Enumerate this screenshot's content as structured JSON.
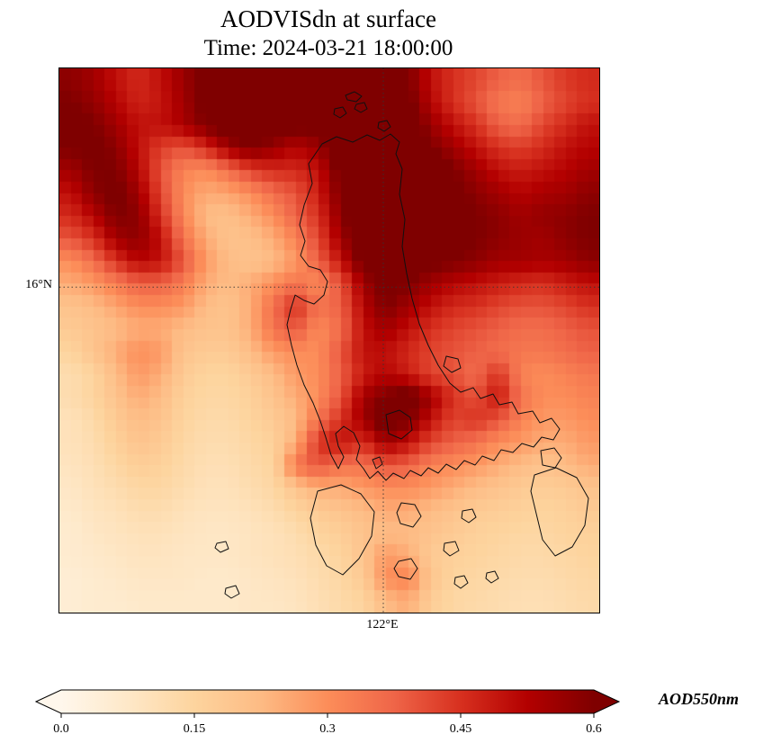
{
  "title": "AODVISdn at surface",
  "subtitle": "Time: 2024-03-21 18:00:00",
  "colorbar": {
    "label": "AOD550nm",
    "ticks": [
      "0.0",
      "0.15",
      "0.3",
      "0.45",
      "0.6"
    ],
    "tick_values": [
      0.0,
      0.15,
      0.3,
      0.45,
      0.6
    ],
    "vmin": 0.0,
    "vmax": 0.6,
    "extend": "both",
    "colors": [
      {
        "t": 0.0,
        "c": "#fff7ec"
      },
      {
        "t": 0.125,
        "c": "#fee8c8"
      },
      {
        "t": 0.25,
        "c": "#fdd49e"
      },
      {
        "t": 0.375,
        "c": "#fdbb84"
      },
      {
        "t": 0.5,
        "c": "#fc8d59"
      },
      {
        "t": 0.625,
        "c": "#ef6548"
      },
      {
        "t": 0.75,
        "c": "#d7301f"
      },
      {
        "t": 0.875,
        "c": "#b30000"
      },
      {
        "t": 1.0,
        "c": "#7f0000"
      }
    ]
  },
  "chart_data": {
    "type": "heatmap",
    "title": "AODVISdn at surface",
    "subtitle": "Time: 2024-03-21 18:00:00",
    "variable": "AOD550nm",
    "colormap": "OrRd",
    "vmin": 0.0,
    "vmax": 0.6,
    "gridlines": {
      "lat": {
        "label": "16°N",
        "y_frac": 0.402
      },
      "lon": {
        "label": "122°E",
        "x_frac": 0.6
      }
    },
    "grid_rows": 24,
    "grid_cols": 24,
    "values": [
      [
        0.58,
        0.55,
        0.5,
        0.46,
        0.5,
        0.56,
        0.62,
        0.66,
        0.68,
        0.7,
        0.7,
        0.68,
        0.7,
        0.68,
        0.65,
        0.6,
        0.5,
        0.45,
        0.42,
        0.38,
        0.36,
        0.4,
        0.44,
        0.46
      ],
      [
        0.6,
        0.57,
        0.52,
        0.47,
        0.49,
        0.55,
        0.62,
        0.68,
        0.7,
        0.7,
        0.68,
        0.66,
        0.7,
        0.7,
        0.68,
        0.62,
        0.52,
        0.45,
        0.4,
        0.34,
        0.32,
        0.38,
        0.42,
        0.45
      ],
      [
        0.62,
        0.6,
        0.55,
        0.5,
        0.5,
        0.54,
        0.6,
        0.65,
        0.68,
        0.65,
        0.62,
        0.62,
        0.68,
        0.7,
        0.7,
        0.65,
        0.56,
        0.5,
        0.45,
        0.38,
        0.36,
        0.42,
        0.46,
        0.5
      ],
      [
        0.6,
        0.62,
        0.58,
        0.5,
        0.43,
        0.4,
        0.46,
        0.55,
        0.6,
        0.56,
        0.52,
        0.56,
        0.65,
        0.7,
        0.7,
        0.68,
        0.6,
        0.55,
        0.5,
        0.45,
        0.43,
        0.46,
        0.5,
        0.52
      ],
      [
        0.55,
        0.6,
        0.6,
        0.52,
        0.4,
        0.32,
        0.3,
        0.36,
        0.43,
        0.46,
        0.46,
        0.5,
        0.62,
        0.7,
        0.7,
        0.7,
        0.65,
        0.6,
        0.55,
        0.5,
        0.48,
        0.5,
        0.52,
        0.55
      ],
      [
        0.5,
        0.58,
        0.62,
        0.55,
        0.42,
        0.3,
        0.25,
        0.26,
        0.3,
        0.36,
        0.4,
        0.48,
        0.6,
        0.68,
        0.7,
        0.7,
        0.68,
        0.62,
        0.58,
        0.55,
        0.52,
        0.54,
        0.55,
        0.58
      ],
      [
        0.46,
        0.52,
        0.6,
        0.58,
        0.45,
        0.31,
        0.22,
        0.21,
        0.25,
        0.3,
        0.38,
        0.45,
        0.58,
        0.68,
        0.7,
        0.7,
        0.68,
        0.65,
        0.6,
        0.58,
        0.55,
        0.57,
        0.58,
        0.6
      ],
      [
        0.4,
        0.45,
        0.55,
        0.58,
        0.5,
        0.35,
        0.25,
        0.2,
        0.21,
        0.25,
        0.32,
        0.42,
        0.55,
        0.65,
        0.7,
        0.68,
        0.65,
        0.62,
        0.6,
        0.58,
        0.56,
        0.55,
        0.58,
        0.6
      ],
      [
        0.3,
        0.36,
        0.45,
        0.52,
        0.5,
        0.4,
        0.28,
        0.22,
        0.2,
        0.22,
        0.28,
        0.38,
        0.5,
        0.62,
        0.68,
        0.65,
        0.62,
        0.6,
        0.58,
        0.55,
        0.55,
        0.54,
        0.55,
        0.58
      ],
      [
        0.25,
        0.28,
        0.33,
        0.38,
        0.38,
        0.33,
        0.25,
        0.22,
        0.25,
        0.3,
        0.35,
        0.3,
        0.4,
        0.55,
        0.62,
        0.6,
        0.55,
        0.52,
        0.5,
        0.48,
        0.46,
        0.45,
        0.48,
        0.5
      ],
      [
        0.2,
        0.22,
        0.26,
        0.3,
        0.3,
        0.28,
        0.22,
        0.2,
        0.25,
        0.36,
        0.46,
        0.35,
        0.38,
        0.52,
        0.6,
        0.55,
        0.5,
        0.46,
        0.45,
        0.42,
        0.4,
        0.4,
        0.42,
        0.45
      ],
      [
        0.18,
        0.2,
        0.22,
        0.25,
        0.25,
        0.22,
        0.2,
        0.2,
        0.25,
        0.35,
        0.4,
        0.3,
        0.36,
        0.5,
        0.55,
        0.5,
        0.45,
        0.42,
        0.4,
        0.38,
        0.36,
        0.36,
        0.38,
        0.4
      ],
      [
        0.15,
        0.2,
        0.25,
        0.3,
        0.28,
        0.2,
        0.18,
        0.18,
        0.22,
        0.28,
        0.3,
        0.3,
        0.4,
        0.5,
        0.5,
        0.46,
        0.42,
        0.4,
        0.38,
        0.36,
        0.34,
        0.34,
        0.36,
        0.38
      ],
      [
        0.12,
        0.15,
        0.22,
        0.28,
        0.25,
        0.18,
        0.15,
        0.15,
        0.18,
        0.22,
        0.28,
        0.3,
        0.38,
        0.48,
        0.52,
        0.48,
        0.42,
        0.4,
        0.36,
        0.45,
        0.32,
        0.3,
        0.32,
        0.34
      ],
      [
        0.12,
        0.15,
        0.2,
        0.25,
        0.22,
        0.16,
        0.14,
        0.14,
        0.16,
        0.2,
        0.25,
        0.3,
        0.4,
        0.55,
        0.6,
        0.65,
        0.55,
        0.45,
        0.4,
        0.5,
        0.35,
        0.3,
        0.3,
        0.32
      ],
      [
        0.1,
        0.13,
        0.18,
        0.22,
        0.2,
        0.15,
        0.13,
        0.13,
        0.15,
        0.18,
        0.22,
        0.35,
        0.45,
        0.55,
        0.65,
        0.6,
        0.5,
        0.42,
        0.45,
        0.4,
        0.32,
        0.28,
        0.28,
        0.3
      ],
      [
        0.1,
        0.12,
        0.16,
        0.2,
        0.18,
        0.14,
        0.12,
        0.12,
        0.14,
        0.16,
        0.25,
        0.45,
        0.5,
        0.45,
        0.55,
        0.5,
        0.42,
        0.38,
        0.35,
        0.3,
        0.28,
        0.25,
        0.25,
        0.28
      ],
      [
        0.09,
        0.11,
        0.14,
        0.17,
        0.16,
        0.13,
        0.11,
        0.11,
        0.13,
        0.15,
        0.35,
        0.4,
        0.35,
        0.35,
        0.4,
        0.38,
        0.32,
        0.3,
        0.28,
        0.25,
        0.22,
        0.2,
        0.22,
        0.25
      ],
      [
        0.08,
        0.1,
        0.12,
        0.14,
        0.14,
        0.12,
        0.1,
        0.1,
        0.12,
        0.14,
        0.2,
        0.25,
        0.25,
        0.28,
        0.3,
        0.3,
        0.28,
        0.25,
        0.22,
        0.2,
        0.18,
        0.17,
        0.18,
        0.2
      ],
      [
        0.07,
        0.09,
        0.1,
        0.12,
        0.12,
        0.1,
        0.09,
        0.09,
        0.1,
        0.12,
        0.15,
        0.18,
        0.2,
        0.22,
        0.25,
        0.25,
        0.22,
        0.2,
        0.18,
        0.17,
        0.16,
        0.15,
        0.16,
        0.18
      ],
      [
        0.06,
        0.08,
        0.09,
        0.1,
        0.1,
        0.09,
        0.08,
        0.08,
        0.09,
        0.1,
        0.12,
        0.15,
        0.17,
        0.2,
        0.22,
        0.22,
        0.2,
        0.18,
        0.16,
        0.15,
        0.14,
        0.14,
        0.15,
        0.16
      ],
      [
        0.06,
        0.07,
        0.08,
        0.09,
        0.09,
        0.08,
        0.08,
        0.08,
        0.09,
        0.1,
        0.11,
        0.13,
        0.15,
        0.2,
        0.28,
        0.25,
        0.18,
        0.16,
        0.15,
        0.14,
        0.13,
        0.13,
        0.14,
        0.15
      ],
      [
        0.05,
        0.06,
        0.07,
        0.08,
        0.08,
        0.08,
        0.07,
        0.07,
        0.08,
        0.09,
        0.1,
        0.12,
        0.14,
        0.18,
        0.3,
        0.32,
        0.2,
        0.15,
        0.14,
        0.13,
        0.12,
        0.12,
        0.13,
        0.14
      ],
      [
        0.05,
        0.06,
        0.06,
        0.07,
        0.07,
        0.07,
        0.07,
        0.07,
        0.08,
        0.08,
        0.09,
        0.11,
        0.13,
        0.15,
        0.22,
        0.25,
        0.17,
        0.14,
        0.13,
        0.12,
        0.11,
        0.11,
        0.12,
        0.13
      ]
    ]
  }
}
